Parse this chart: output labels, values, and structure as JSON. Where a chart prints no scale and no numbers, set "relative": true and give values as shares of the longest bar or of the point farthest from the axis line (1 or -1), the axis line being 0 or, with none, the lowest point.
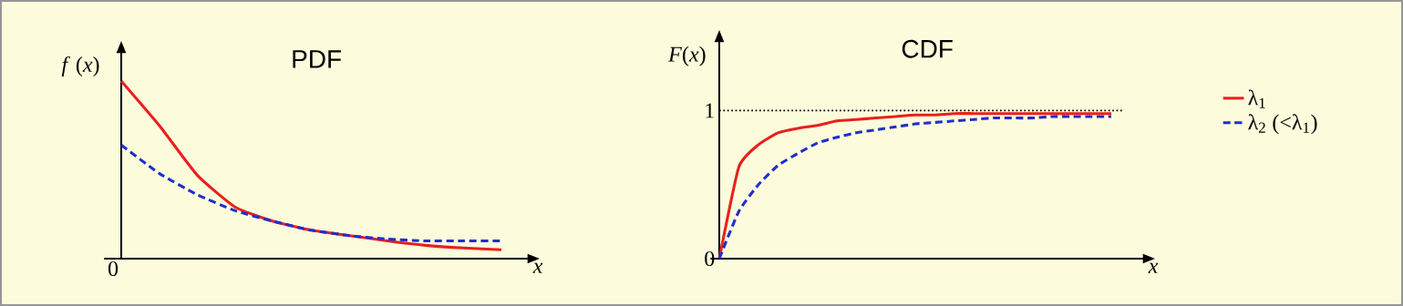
{
  "chart_data": [
    {
      "type": "line",
      "title": "PDF",
      "xlabel": "x",
      "ylabel": "*f* (*x*)",
      "relative": true,
      "annotations": [
        "0"
      ],
      "legend": false,
      "categories": [
        null,
        null,
        null,
        null,
        null,
        null,
        null,
        null,
        null,
        null,
        null
      ],
      "series": [
        {
          "color": "#e8201e",
          "line_style": "solid",
          "values": [
            1,
            0.75,
            0.47,
            0.29,
            0.21,
            0.16,
            0.13,
            0.1,
            0.075,
            0.06,
            0.05
          ]
        },
        {
          "color": "#1f2fcc",
          "line_style": "dashed",
          "values": [
            0.64,
            0.48,
            0.36,
            0.27,
            0.21,
            0.16,
            0.13,
            0.11,
            0.1,
            0.1,
            0.1
          ]
        }
      ]
    },
    {
      "type": "line",
      "title": "CDF",
      "xlabel": "x",
      "ylabel": "*F*(*x*)",
      "ylim": [
        0,
        1.47
      ],
      "yticks": [
        0,
        1
      ],
      "legend": "right",
      "ref_lines": [
        {
          "axis": "y",
          "value": 1,
          "color": "#000000",
          "line_style": "dotted"
        }
      ],
      "categories": [
        null,
        null,
        null,
        null,
        null,
        null,
        null,
        null,
        null,
        null,
        null,
        null,
        null,
        null,
        null,
        null,
        null,
        null,
        null,
        null,
        null
      ],
      "series": [
        {
          "name": "λ$_{1}$",
          "color": "#e8201e",
          "line_style": "solid",
          "values": [
            0,
            0.62,
            0.77,
            0.85,
            0.88,
            0.9,
            0.93,
            0.94,
            0.95,
            0.96,
            0.97,
            0.97,
            0.98,
            0.98,
            0.98,
            0.98,
            0.98,
            0.98,
            0.98,
            0.98,
            0.98
          ]
        },
        {
          "name": "λ$_{2}$ (<λ$_{1}$)",
          "color": "#1f2fcc",
          "line_style": "dashed",
          "values": [
            0,
            0.32,
            0.5,
            0.63,
            0.71,
            0.78,
            0.82,
            0.85,
            0.87,
            0.89,
            0.91,
            0.92,
            0.93,
            0.94,
            0.95,
            0.95,
            0.95,
            0.96,
            0.96,
            0.96,
            0.96
          ]
        }
      ]
    }
  ]
}
